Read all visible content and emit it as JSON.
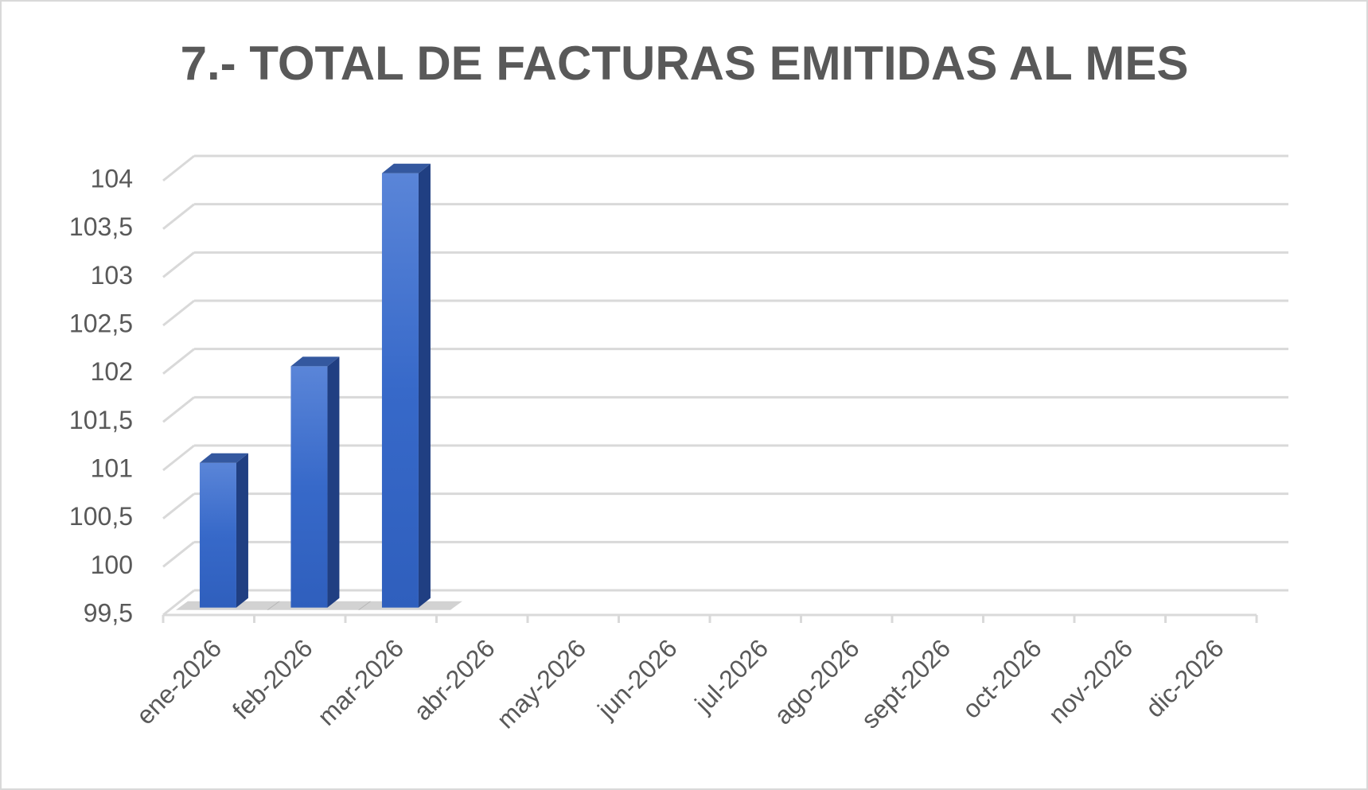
{
  "chart_data": {
    "type": "bar3d",
    "title": "7.- TOTAL DE FACTURAS EMITIDAS AL MES",
    "categories": [
      "ene-2026",
      "feb-2026",
      "mar-2026",
      "abr-2026",
      "may-2026",
      "jun-2026",
      "jul-2026",
      "ago-2026",
      "sept-2026",
      "oct-2026",
      "nov-2026",
      "dic-2026"
    ],
    "values": [
      101,
      102,
      104,
      null,
      null,
      null,
      null,
      null,
      null,
      null,
      null,
      null
    ],
    "color": "#3a6bcc",
    "ylim": [
      99.5,
      104
    ],
    "yticks": [
      {
        "value": 99.5,
        "label": "99,5"
      },
      100,
      {
        "value": 100.5,
        "label": "100,5"
      },
      101,
      {
        "value": 101.5,
        "label": "101,5"
      },
      102,
      {
        "value": 102.5,
        "label": "102,5"
      },
      103,
      {
        "value": 103.5,
        "label": "103,5"
      },
      104
    ],
    "grid": true
  }
}
